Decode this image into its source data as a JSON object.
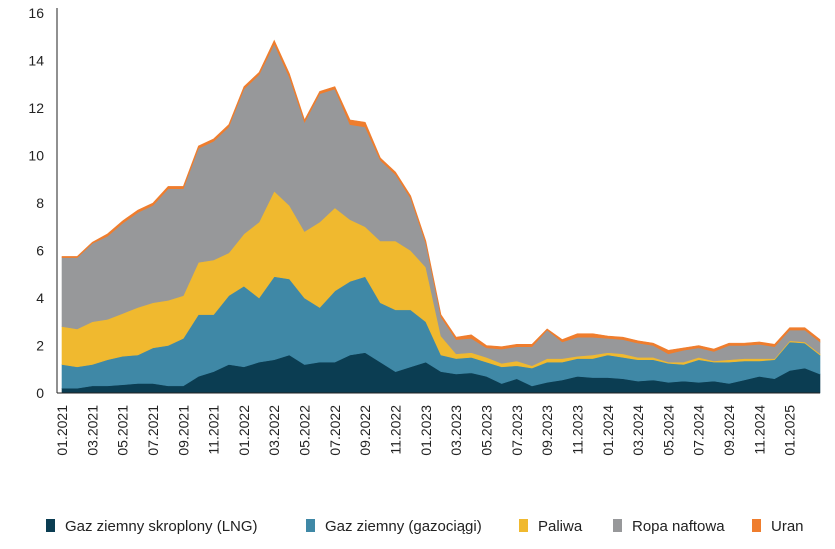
{
  "chart_data": {
    "type": "area",
    "stacked": true,
    "x": [
      "01.2021",
      "02.2021",
      "03.2021",
      "04.2021",
      "05.2021",
      "06.2021",
      "07.2021",
      "08.2021",
      "09.2021",
      "10.2021",
      "11.2021",
      "12.2021",
      "01.2022",
      "02.2022",
      "03.2022",
      "04.2022",
      "05.2022",
      "06.2022",
      "07.2022",
      "08.2022",
      "09.2022",
      "10.2022",
      "11.2022",
      "12.2022",
      "01.2023",
      "02.2023",
      "03.2023",
      "04.2023",
      "05.2023",
      "06.2023",
      "07.2023",
      "08.2023",
      "09.2023",
      "10.2023",
      "11.2023",
      "12.2023",
      "01.2024",
      "02.2024",
      "03.2024",
      "04.2024",
      "05.2024",
      "06.2024",
      "07.2024",
      "08.2024",
      "09.2024",
      "10.2024",
      "11.2024",
      "12.2024",
      "01.2025",
      "02.2025",
      "03.2025"
    ],
    "x_tick_labels": [
      "01.2021",
      "03.2021",
      "05.2021",
      "07.2021",
      "09.2021",
      "11.2021",
      "01.2022",
      "03.2022",
      "05.2022",
      "07.2022",
      "09.2022",
      "11.2022",
      "01.2023",
      "03.2023",
      "05.2023",
      "07.2023",
      "09.2023",
      "11.2023",
      "01.2024",
      "03.2024",
      "05.2024",
      "07.2024",
      "09.2024",
      "11.2024",
      "01.2025"
    ],
    "ylim": [
      0,
      16
    ],
    "y_ticks": [
      0,
      2,
      4,
      6,
      8,
      10,
      12,
      14,
      16
    ],
    "grid": false,
    "legend_position": "bottom",
    "series": [
      {
        "name": "Gaz ziemny skroplony (LNG)",
        "color": "#0b3d52",
        "values": [
          0.2,
          0.2,
          0.3,
          0.3,
          0.35,
          0.4,
          0.4,
          0.3,
          0.3,
          0.7,
          0.9,
          1.2,
          1.1,
          1.3,
          1.4,
          1.6,
          1.2,
          1.3,
          1.3,
          1.6,
          1.7,
          1.3,
          0.9,
          1.1,
          1.3,
          0.9,
          0.8,
          0.85,
          0.7,
          0.4,
          0.6,
          0.3,
          0.45,
          0.55,
          0.7,
          0.65,
          0.65,
          0.6,
          0.5,
          0.55,
          0.45,
          0.5,
          0.45,
          0.5,
          0.4,
          0.55,
          0.7,
          0.6,
          0.95,
          1.05,
          0.8
        ]
      },
      {
        "name": "Gaz ziemny (gazociągi)",
        "color": "#3f88a6",
        "values": [
          1.0,
          0.9,
          0.9,
          1.1,
          1.2,
          1.2,
          1.5,
          1.7,
          2.0,
          2.6,
          2.4,
          2.9,
          3.4,
          2.7,
          3.5,
          3.2,
          2.8,
          2.3,
          3.0,
          3.1,
          3.2,
          2.5,
          2.6,
          2.4,
          1.7,
          0.7,
          0.65,
          0.65,
          0.6,
          0.7,
          0.55,
          0.75,
          0.85,
          0.75,
          0.75,
          0.8,
          0.95,
          0.9,
          0.9,
          0.85,
          0.8,
          0.7,
          0.95,
          0.8,
          0.9,
          0.8,
          0.65,
          0.8,
          1.2,
          1.05,
          0.8
        ]
      },
      {
        "name": "Paliwa",
        "color": "#f0b92f",
        "values": [
          1.6,
          1.6,
          1.8,
          1.7,
          1.8,
          2.0,
          1.9,
          1.9,
          1.8,
          2.2,
          2.3,
          1.8,
          2.2,
          3.2,
          3.6,
          3.1,
          2.8,
          3.6,
          3.5,
          2.6,
          2.1,
          2.6,
          2.9,
          2.5,
          2.3,
          0.8,
          0.2,
          0.2,
          0.2,
          0.15,
          0.2,
          0.1,
          0.15,
          0.15,
          0.1,
          0.15,
          0.1,
          0.15,
          0.1,
          0.1,
          0.05,
          0.1,
          0.1,
          0.05,
          0.1,
          0.1,
          0.1,
          0.05,
          0.05,
          0.05,
          0.05
        ]
      },
      {
        "name": "Ropa naftowa",
        "color": "#97989a",
        "values": [
          2.9,
          3.0,
          3.3,
          3.5,
          3.8,
          4.0,
          4.1,
          4.7,
          4.5,
          4.8,
          5.0,
          5.3,
          6.1,
          6.2,
          6.2,
          5.4,
          4.6,
          5.4,
          5.0,
          4.0,
          4.2,
          3.4,
          2.8,
          2.2,
          1.0,
          0.8,
          0.6,
          0.6,
          0.4,
          0.6,
          0.6,
          0.8,
          1.2,
          0.7,
          0.8,
          0.75,
          0.6,
          0.6,
          0.6,
          0.5,
          0.35,
          0.5,
          0.4,
          0.4,
          0.6,
          0.55,
          0.6,
          0.5,
          0.45,
          0.5,
          0.5
        ]
      },
      {
        "name": "Uran",
        "color": "#ef7d2d",
        "values": [
          0.05,
          0.05,
          0.05,
          0.1,
          0.1,
          0.1,
          0.1,
          0.1,
          0.1,
          0.1,
          0.1,
          0.1,
          0.1,
          0.1,
          0.15,
          0.15,
          0.1,
          0.1,
          0.1,
          0.2,
          0.2,
          0.1,
          0.1,
          0.1,
          0.1,
          0.1,
          0.1,
          0.15,
          0.1,
          0.1,
          0.1,
          0.1,
          0.05,
          0.1,
          0.15,
          0.15,
          0.1,
          0.1,
          0.1,
          0.1,
          0.15,
          0.1,
          0.1,
          0.1,
          0.1,
          0.1,
          0.1,
          0.1,
          0.1,
          0.1,
          0.1
        ]
      }
    ]
  }
}
